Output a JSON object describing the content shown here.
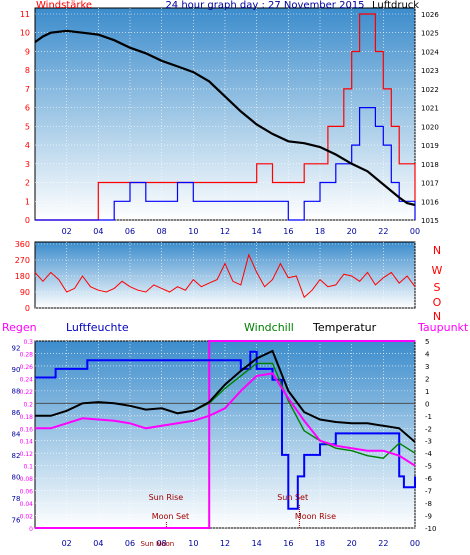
{
  "chart_data": [
    {
      "type": "line",
      "title": "24 hour graph day : 27 November 2015",
      "left_axis_label": "Windstärke",
      "right_axis_label": "Luftdruck",
      "left_ticks": [
        "0",
        "1",
        "2",
        "3",
        "4",
        "5",
        "6",
        "7",
        "8",
        "9",
        "10",
        "11"
      ],
      "right_ticks": [
        "1015",
        "1016",
        "1017",
        "1018",
        "1019",
        "1020",
        "1021",
        "1022",
        "1023",
        "1024",
        "1025",
        "1026"
      ],
      "x_ticks": [
        "02",
        "04",
        "06",
        "08",
        "10",
        "12",
        "14",
        "16",
        "18",
        "20",
        "22",
        "00"
      ],
      "left_range": [
        0,
        11
      ],
      "right_range": [
        1015,
        1026
      ],
      "x_range": [
        0,
        24
      ],
      "grid": true,
      "series": [
        {
          "name": "Luftdruck",
          "color": "#000000",
          "axis": "right",
          "x": [
            0,
            0.5,
            1,
            2,
            3,
            4,
            5,
            6,
            7,
            8,
            9,
            10,
            11,
            12,
            13,
            14,
            15,
            16,
            17,
            18,
            19,
            20,
            21,
            22,
            23,
            23.5,
            24
          ],
          "values": [
            1024.5,
            1024.8,
            1025.0,
            1025.1,
            1025.0,
            1024.9,
            1024.6,
            1024.2,
            1023.9,
            1023.5,
            1023.2,
            1022.9,
            1022.4,
            1021.6,
            1020.8,
            1020.1,
            1019.6,
            1019.2,
            1019.1,
            1018.9,
            1018.5,
            1018.0,
            1017.6,
            1016.9,
            1016.2,
            1015.9,
            1015.8
          ]
        },
        {
          "name": "Windstärke",
          "color": "#ff0000",
          "axis": "left",
          "x": [
            0,
            1,
            2,
            3,
            4,
            5,
            6,
            7,
            8,
            9,
            10,
            11,
            12,
            13,
            14,
            15,
            16,
            17,
            18,
            18.5,
            19,
            19.5,
            20,
            20.5,
            21,
            21.5,
            22,
            22.5,
            23,
            24
          ],
          "values": [
            0,
            0,
            0,
            0,
            2,
            2,
            2,
            2,
            2,
            2,
            2,
            2,
            2,
            2,
            3,
            2,
            2,
            3,
            3,
            5,
            5,
            7,
            9,
            11,
            11,
            9,
            7,
            5,
            3,
            1
          ]
        },
        {
          "name": "Windstärke (mean)",
          "color": "#0000ff",
          "axis": "left",
          "x": [
            0,
            1,
            2,
            3,
            4,
            5,
            6,
            7,
            8,
            9,
            10,
            11,
            12,
            13,
            14,
            15,
            16,
            17,
            18,
            18.5,
            19,
            19.5,
            20,
            20.5,
            21,
            21.5,
            22,
            22.5,
            23,
            24
          ],
          "values": [
            0,
            0,
            0,
            0,
            0,
            1,
            2,
            1,
            1,
            2,
            1,
            1,
            1,
            1,
            1,
            1,
            0,
            1,
            2,
            2,
            3,
            3,
            4,
            6,
            6,
            5,
            4,
            2,
            1,
            0
          ]
        }
      ]
    },
    {
      "type": "line",
      "left_ticks": [
        "0",
        "90",
        "180",
        "270",
        "360"
      ],
      "right_ticks": [
        "N",
        "W",
        "S",
        "O",
        "N"
      ],
      "y_range": [
        0,
        360
      ],
      "x_range": [
        0,
        24
      ],
      "series": [
        {
          "name": "Windrichtung",
          "color": "#ff0000",
          "x": [
            0,
            0.5,
            1,
            1.5,
            2,
            2.5,
            3,
            3.5,
            4,
            4.5,
            5,
            5.5,
            6,
            6.5,
            7,
            7.5,
            8,
            8.5,
            9,
            9.5,
            10,
            10.5,
            11,
            11.5,
            12,
            12.5,
            13,
            13.5,
            14,
            14.5,
            15,
            15.5,
            16,
            16.5,
            17,
            17.5,
            18,
            18.5,
            19,
            19.5,
            20,
            20.5,
            21,
            21.5,
            22,
            22.5,
            23,
            23.5,
            24
          ],
          "values": [
            200,
            150,
            200,
            160,
            90,
            110,
            180,
            120,
            100,
            90,
            110,
            150,
            120,
            100,
            90,
            130,
            110,
            90,
            120,
            100,
            160,
            120,
            140,
            160,
            250,
            150,
            130,
            300,
            200,
            120,
            160,
            250,
            170,
            180,
            60,
            100,
            160,
            120,
            130,
            190,
            180,
            150,
            200,
            130,
            170,
            200,
            140,
            180,
            120
          ]
        }
      ]
    },
    {
      "type": "line",
      "legend_labels": {
        "regen": "Regen",
        "luftfeuchte": "Luftfeuchte",
        "windchill": "Windchill",
        "temperatur": "Temperatur",
        "taupunkt": "Taupunkt"
      },
      "humidity_ticks": [
        "76",
        "78",
        "80",
        "82",
        "84",
        "86",
        "88",
        "90",
        "92"
      ],
      "rain_ticks": [
        "0",
        "0.02",
        "0.04",
        "0.06",
        "0.08",
        "0.1",
        "0.12",
        "0.14",
        "0.16",
        "0.18",
        "0.2",
        "0.22",
        "0.24",
        "0.26",
        "0.28",
        "0.3"
      ],
      "temp_ticks": [
        "-10",
        "-9",
        "-8",
        "-7",
        "-6",
        "-5",
        "-4",
        "-3",
        "-2",
        "-1",
        "0",
        "1",
        "2",
        "3",
        "4",
        "5"
      ],
      "x_ticks": [
        "02",
        "04",
        "06",
        "08",
        "10",
        "12",
        "14",
        "16",
        "18",
        "20",
        "22",
        "00"
      ],
      "temp_range": [
        -10,
        5
      ],
      "humidity_range": [
        75.2,
        92.6
      ],
      "x_range": [
        0,
        24
      ],
      "annotations": {
        "sun_rise": "Sun Rise",
        "sun_set": "Sun Set",
        "moon_set": "Moon Set",
        "moon_rise": "Moon Rise",
        "sun_noon": "Sun Noon"
      },
      "annotation_times": {
        "sun_rise": 11.3,
        "sun_set": 16.4,
        "moon_set": 8.3,
        "moon_rise": 16.7,
        "sun_noon": 7.6
      },
      "series": [
        {
          "name": "Temperatur",
          "color": "#000000",
          "axis": "temp",
          "x": [
            0,
            1,
            2,
            3,
            4,
            5,
            6,
            7,
            8,
            9,
            10,
            11,
            12,
            13,
            14,
            15,
            16,
            17,
            18,
            19,
            20,
            21,
            22,
            23,
            24
          ],
          "values": [
            -1.0,
            -1.0,
            -0.6,
            0.0,
            0.1,
            0.0,
            -0.2,
            -0.5,
            -0.4,
            -0.8,
            -0.6,
            0.1,
            1.5,
            2.6,
            3.6,
            4.2,
            1.0,
            -0.7,
            -1.3,
            -1.5,
            -1.6,
            -1.6,
            -1.8,
            -2.0,
            -3.1
          ]
        },
        {
          "name": "Windchill",
          "color": "#008000",
          "axis": "temp",
          "x": [
            0,
            1,
            2,
            3,
            4,
            5,
            6,
            7,
            8,
            9,
            10,
            11,
            12,
            13,
            14,
            15,
            16,
            17,
            18,
            19,
            20,
            21,
            22,
            23,
            24
          ],
          "values": [
            -1.0,
            -1.0,
            -0.6,
            0.0,
            0.1,
            0.0,
            -0.2,
            -0.5,
            -0.4,
            -0.8,
            -0.6,
            0.0,
            1.2,
            2.2,
            3.2,
            3.2,
            0.2,
            -2.2,
            -3.0,
            -3.6,
            -3.8,
            -4.2,
            -4.4,
            -3.2,
            -4.0
          ]
        },
        {
          "name": "Taupunkt",
          "color": "#ff00ff",
          "axis": "temp",
          "x": [
            0,
            1,
            2,
            3,
            4,
            5,
            6,
            7,
            8,
            9,
            10,
            11,
            12,
            13,
            14,
            15,
            16,
            17,
            18,
            19,
            20,
            21,
            22,
            23,
            24
          ],
          "values": [
            -2.0,
            -2.0,
            -1.6,
            -1.2,
            -1.3,
            -1.4,
            -1.6,
            -2.0,
            -1.8,
            -1.6,
            -1.4,
            -1.0,
            -0.4,
            1.0,
            2.2,
            2.4,
            0.4,
            -1.4,
            -3.0,
            -3.4,
            -3.6,
            -3.8,
            -3.8,
            -4.2,
            -5.0
          ]
        },
        {
          "name": "Luftfeuchte",
          "color": "#0000ff",
          "axis": "humidity",
          "x": [
            0,
            1,
            1.3,
            2,
            3,
            3.3,
            4,
            5,
            6,
            7,
            8,
            9,
            10,
            11,
            12,
            13,
            13.6,
            14,
            15,
            15.6,
            16,
            16.6,
            17,
            18,
            19,
            20,
            21,
            22,
            23,
            23.3,
            24
          ],
          "values": [
            89.2,
            89.2,
            90.0,
            90.0,
            90.0,
            90.8,
            90.8,
            90.8,
            90.8,
            90.8,
            90.8,
            90.8,
            90.8,
            90.8,
            90.8,
            90.0,
            91.6,
            90.0,
            89.0,
            82.0,
            77.0,
            80.0,
            82.0,
            83.0,
            84.0,
            84.0,
            84.0,
            84.0,
            80.0,
            79.0,
            80.0
          ]
        },
        {
          "name": "Regen",
          "color": "#ff00ff",
          "axis": "rain",
          "x": [
            0,
            11,
            11,
            24
          ],
          "values": [
            0,
            0,
            0.3,
            0.3
          ]
        }
      ]
    }
  ]
}
